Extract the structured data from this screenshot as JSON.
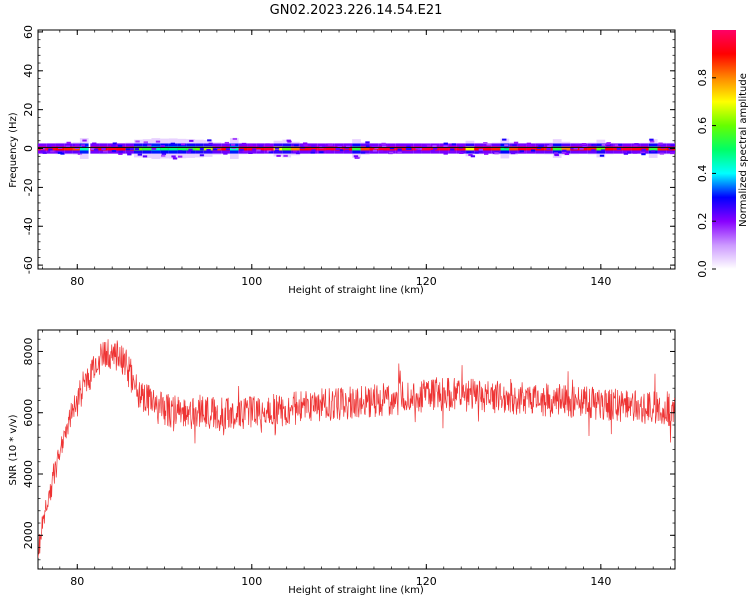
{
  "title": "GN02.2023.226.14.54.E21",
  "chart_data": [
    {
      "type": "heatmap",
      "xlabel": "Height of straight line (km)",
      "ylabel": "Frequency (Hz)",
      "xlim": [
        75.5,
        148.5
      ],
      "ylim": [
        -62,
        61
      ],
      "xticks": [
        80,
        100,
        120,
        140
      ],
      "yticks": [
        -60,
        -40,
        -20,
        0,
        20,
        40,
        60
      ],
      "colorbar": {
        "label": "Normalized spectral amplitude",
        "range": [
          0,
          1
        ],
        "ticks": [
          0.0,
          0.2,
          0.4,
          0.6,
          0.8
        ],
        "colormap": [
          "#ffffff",
          "#cc99ff",
          "#8800ff",
          "#0000ff",
          "#00ffff",
          "#00ff66",
          "#66ff00",
          "#ffff00",
          "#ff8800",
          "#ff0000",
          "#ff0066"
        ]
      },
      "band": {
        "center_hz": 0,
        "core_halfwidth_hz": 1,
        "spread_halfwidth_hz": 6
      },
      "cells": [
        [
          76.0,
          0.95
        ],
        [
          77.0,
          0.93
        ],
        [
          78.0,
          0.9
        ],
        [
          79.0,
          0.88
        ],
        [
          80.0,
          0.85
        ],
        [
          80.8,
          0.45
        ],
        [
          82.0,
          0.92
        ],
        [
          83.0,
          0.9
        ],
        [
          84.0,
          0.93
        ],
        [
          85.0,
          0.91
        ],
        [
          86.0,
          0.88
        ],
        [
          87.0,
          0.6
        ],
        [
          88.0,
          0.55
        ],
        [
          89.0,
          0.45
        ],
        [
          90.0,
          0.5
        ],
        [
          91.0,
          0.48
        ],
        [
          92.0,
          0.52
        ],
        [
          93.0,
          0.55
        ],
        [
          94.0,
          0.6
        ],
        [
          95.0,
          0.65
        ],
        [
          96.0,
          0.85
        ],
        [
          97.0,
          0.9
        ],
        [
          98.0,
          0.45
        ],
        [
          99.0,
          0.9
        ],
        [
          100.0,
          0.93
        ],
        [
          101.0,
          0.92
        ],
        [
          102.0,
          0.95
        ],
        [
          103.0,
          0.7
        ],
        [
          104.0,
          0.6
        ],
        [
          105.0,
          0.8
        ],
        [
          106.0,
          0.92
        ],
        [
          107.0,
          0.93
        ],
        [
          108.0,
          0.95
        ],
        [
          109.0,
          0.94
        ],
        [
          110.0,
          0.93
        ],
        [
          111.0,
          0.92
        ],
        [
          112.0,
          0.55
        ],
        [
          113.0,
          0.85
        ],
        [
          114.0,
          0.92
        ],
        [
          115.0,
          0.94
        ],
        [
          116.0,
          0.95
        ],
        [
          117.0,
          0.93
        ],
        [
          118.0,
          0.94
        ],
        [
          119.0,
          0.95
        ],
        [
          120.0,
          0.96
        ],
        [
          121.0,
          0.95
        ],
        [
          122.0,
          0.94
        ],
        [
          123.0,
          0.95
        ],
        [
          124.0,
          0.93
        ],
        [
          125.0,
          0.7
        ],
        [
          126.0,
          0.9
        ],
        [
          127.0,
          0.92
        ],
        [
          128.0,
          0.88
        ],
        [
          129.0,
          0.5
        ],
        [
          130.0,
          0.85
        ],
        [
          131.0,
          0.92
        ],
        [
          132.0,
          0.93
        ],
        [
          133.0,
          0.9
        ],
        [
          134.0,
          0.88
        ],
        [
          135.0,
          0.55
        ],
        [
          136.0,
          0.8
        ],
        [
          137.0,
          0.9
        ],
        [
          138.0,
          0.92
        ],
        [
          139.0,
          0.88
        ],
        [
          140.0,
          0.6
        ],
        [
          141.0,
          0.9
        ],
        [
          142.0,
          0.93
        ],
        [
          143.0,
          0.94
        ],
        [
          144.0,
          0.92
        ],
        [
          145.0,
          0.9
        ],
        [
          146.0,
          0.55
        ],
        [
          147.0,
          0.88
        ],
        [
          148.0,
          0.9
        ]
      ]
    },
    {
      "type": "line",
      "xlabel": "Height of straight line (km)",
      "ylabel": "SNR (10 * v/v)",
      "xlim": [
        75.5,
        148.5
      ],
      "ylim": [
        900,
        8700
      ],
      "xticks": [
        80,
        100,
        120,
        140
      ],
      "yticks": [
        2000,
        4000,
        6000,
        8000
      ],
      "color": "#ee3333",
      "series": [
        {
          "x": [
            75.5,
            76.0,
            76.5,
            77.0,
            77.5,
            78.0,
            78.5,
            79.0,
            79.5,
            80.0,
            80.5,
            81.0,
            81.5,
            82.0,
            82.5,
            83.0,
            83.5,
            84.0,
            84.5,
            85.0,
            85.5,
            86.0,
            86.5,
            87.0,
            87.5,
            88.0,
            88.5,
            89.0,
            89.5,
            90.0,
            91.0,
            92.0,
            93.0,
            94.0,
            95.0,
            96.0,
            97.0,
            98.0,
            99.0,
            100.0,
            102.0,
            104.0,
            106.0,
            108.0,
            110.0,
            112.0,
            114.0,
            116.0,
            118.0,
            120.0,
            122.0,
            124.0,
            126.0,
            128.0,
            130.0,
            132.0,
            134.0,
            136.0,
            138.0,
            140.0,
            142.0,
            144.0,
            146.0,
            148.0,
            148.5
          ],
          "y": [
            1400,
            2300,
            3000,
            3500,
            4100,
            4800,
            5300,
            5700,
            6100,
            6400,
            6700,
            7000,
            7300,
            7500,
            7700,
            7800,
            7900,
            7950,
            7900,
            7800,
            7600,
            7300,
            7000,
            6700,
            6500,
            6400,
            6300,
            6200,
            6150,
            6100,
            6050,
            6000,
            6000,
            6050,
            6000,
            5950,
            5950,
            6000,
            5950,
            6000,
            6050,
            6100,
            6200,
            6250,
            6300,
            6350,
            6400,
            6450,
            6500,
            6550,
            6600,
            6600,
            6550,
            6500,
            6450,
            6450,
            6400,
            6400,
            6350,
            6300,
            6250,
            6200,
            6150,
            6100,
            6100
          ],
          "noise_amplitude": 550
        }
      ]
    }
  ]
}
